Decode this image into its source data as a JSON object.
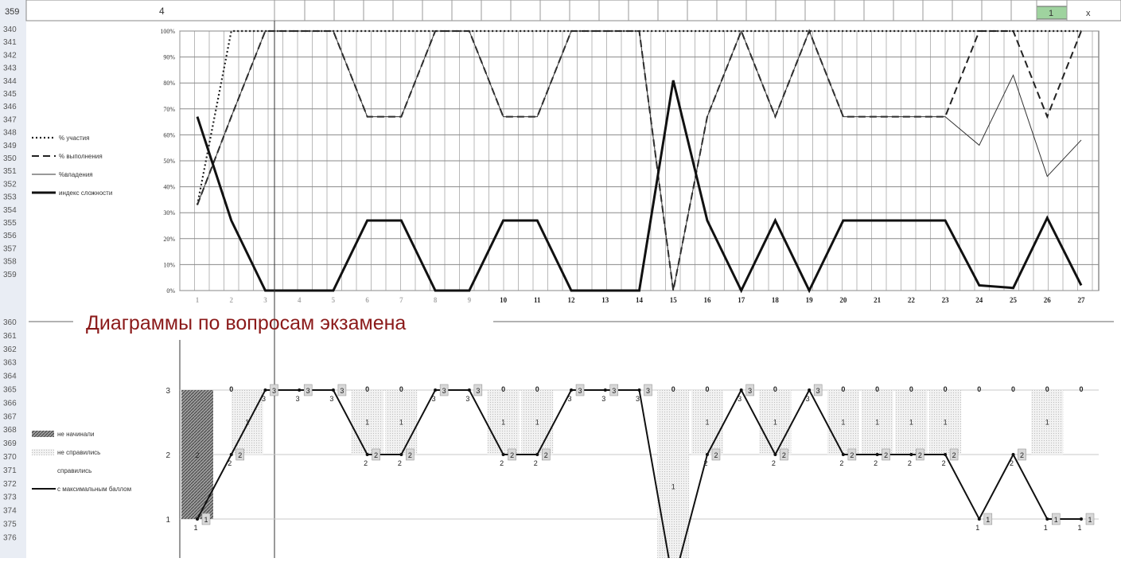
{
  "header_row": {
    "row_number": "359",
    "cell_value": "4",
    "highlight_cell": "1",
    "right_cell": "x"
  },
  "row_numbers": [
    "360",
    "361",
    "362",
    "363",
    "364",
    "365",
    "366",
    "367",
    "368",
    "369",
    "370",
    "371",
    "372",
    "373",
    "374",
    "375",
    "376"
  ],
  "row_numbers_top": [
    "340",
    "341",
    "342",
    "343",
    "344",
    "345",
    "346",
    "347",
    "348",
    "349",
    "350",
    "351",
    "352",
    "353",
    "354",
    "355",
    "356",
    "357",
    "358",
    "359"
  ],
  "section_title": "Диаграммы по вопросам экзамена",
  "colors": {
    "title": "#8b1a1a",
    "highlight_cell": "#9fd39f",
    "grid": "#9a9a9a",
    "row_header_bg": "#e9edf4"
  },
  "chart_data": [
    {
      "type": "line",
      "categories": [
        "1",
        "2",
        "3",
        "4",
        "5",
        "6",
        "7",
        "8",
        "9",
        "10",
        "11",
        "12",
        "13",
        "14",
        "15",
        "16",
        "17",
        "18",
        "19",
        "20",
        "21",
        "22",
        "23",
        "24",
        "25",
        "26",
        "27"
      ],
      "ylim": [
        0,
        100
      ],
      "y_ticks": [
        "0%",
        "10%",
        "20%",
        "30%",
        "40%",
        "50%",
        "60%",
        "70%",
        "80%",
        "90%",
        "100%"
      ],
      "grid": true,
      "legend_position": "left",
      "series": [
        {
          "name": "% участия",
          "style": "dotted",
          "values": [
            33,
            100,
            100,
            100,
            100,
            100,
            100,
            100,
            100,
            100,
            100,
            100,
            100,
            100,
            100,
            100,
            100,
            100,
            100,
            100,
            100,
            100,
            100,
            100,
            100,
            100,
            100
          ]
        },
        {
          "name": "% выполнения",
          "style": "dashed",
          "values": [
            33,
            67,
            100,
            100,
            100,
            67,
            67,
            100,
            100,
            67,
            67,
            100,
            100,
            100,
            0,
            67,
            100,
            67,
            100,
            67,
            67,
            67,
            67,
            100,
            100,
            67,
            100
          ]
        },
        {
          "name": "%владения",
          "style": "thin",
          "values": [
            33,
            67,
            100,
            100,
            100,
            67,
            67,
            100,
            100,
            67,
            67,
            100,
            100,
            100,
            0,
            67,
            100,
            67,
            100,
            67,
            67,
            67,
            67,
            56,
            83,
            44,
            58
          ]
        },
        {
          "name": "индекс сложности",
          "style": "thick",
          "values": [
            67,
            27,
            0,
            0,
            0,
            27,
            27,
            0,
            0,
            27,
            27,
            0,
            0,
            0,
            81,
            27,
            0,
            27,
            0,
            27,
            27,
            27,
            27,
            2,
            1,
            28,
            2
          ]
        }
      ]
    },
    {
      "type": "line",
      "ylim": [
        0,
        3
      ],
      "y_ticks": [
        "1",
        "2",
        "3"
      ],
      "legend_position": "left",
      "series": [
        {
          "name": "не начинали",
          "style": "dark-hatch"
        },
        {
          "name": "не справились",
          "style": "light-hatch"
        },
        {
          "name": "справились",
          "style": "none"
        },
        {
          "name": "с максимальным баллом",
          "style": "line",
          "values": [
            1,
            2,
            3,
            3,
            3,
            2,
            2,
            3,
            3,
            2,
            2,
            3,
            3,
            3,
            0,
            2,
            3,
            2,
            3,
            2,
            2,
            2,
            2,
            1,
            2,
            1,
            1
          ]
        }
      ],
      "not_started": [
        2,
        0,
        0,
        0,
        0,
        0,
        0,
        0,
        0,
        0,
        0,
        0,
        0,
        0,
        0,
        0,
        0,
        0,
        0,
        0,
        0,
        0,
        0,
        0,
        0,
        0,
        0
      ],
      "failed": [
        0,
        1,
        0,
        0,
        0,
        1,
        1,
        0,
        0,
        1,
        1,
        0,
        0,
        0,
        3,
        1,
        0,
        1,
        0,
        1,
        1,
        1,
        1,
        0,
        0,
        1,
        0
      ],
      "zero_marks": [
        "",
        "0",
        "",
        "",
        "",
        "0",
        "0",
        "",
        "",
        "0",
        "0",
        "",
        "",
        "",
        "0",
        "0",
        "",
        "0",
        "",
        "0",
        "0",
        "0",
        "0",
        "0",
        "0",
        "0",
        "0"
      ]
    }
  ]
}
